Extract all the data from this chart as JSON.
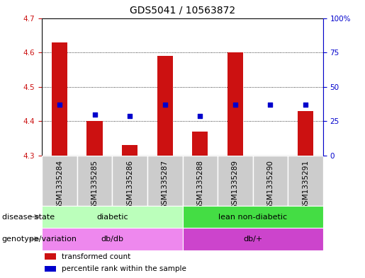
{
  "title": "GDS5041 / 10563872",
  "samples": [
    "GSM1335284",
    "GSM1335285",
    "GSM1335286",
    "GSM1335287",
    "GSM1335288",
    "GSM1335289",
    "GSM1335290",
    "GSM1335291"
  ],
  "transformed_count": [
    4.63,
    4.4,
    4.33,
    4.59,
    4.37,
    4.6,
    4.3,
    4.43
  ],
  "percentile_rank": [
    37,
    30,
    29,
    37,
    29,
    37,
    37,
    37
  ],
  "ylim_left": [
    4.3,
    4.7
  ],
  "ylim_right": [
    0,
    100
  ],
  "yticks_left": [
    4.3,
    4.4,
    4.5,
    4.6,
    4.7
  ],
  "yticks_right": [
    0,
    25,
    50,
    75,
    100
  ],
  "bar_color": "#cc1111",
  "dot_color": "#0000cc",
  "bar_base": 4.3,
  "disease_state_groups": [
    {
      "label": "diabetic",
      "start": 0,
      "end": 4,
      "color": "#bbffbb"
    },
    {
      "label": "lean non-diabetic",
      "start": 4,
      "end": 8,
      "color": "#44dd44"
    }
  ],
  "genotype_groups": [
    {
      "label": "db/db",
      "start": 0,
      "end": 4,
      "color": "#ee88ee"
    },
    {
      "label": "db/+",
      "start": 4,
      "end": 8,
      "color": "#cc44cc"
    }
  ],
  "disease_label": "disease state",
  "genotype_label": "genotype/variation",
  "legend_items": [
    {
      "label": "transformed count",
      "color": "#cc1111"
    },
    {
      "label": "percentile rank within the sample",
      "color": "#0000cc"
    }
  ],
  "sample_bg_color": "#cccccc",
  "plot_bg": "#ffffff",
  "title_fontsize": 10,
  "tick_fontsize": 7.5,
  "annot_fontsize": 8,
  "legend_fontsize": 7.5
}
